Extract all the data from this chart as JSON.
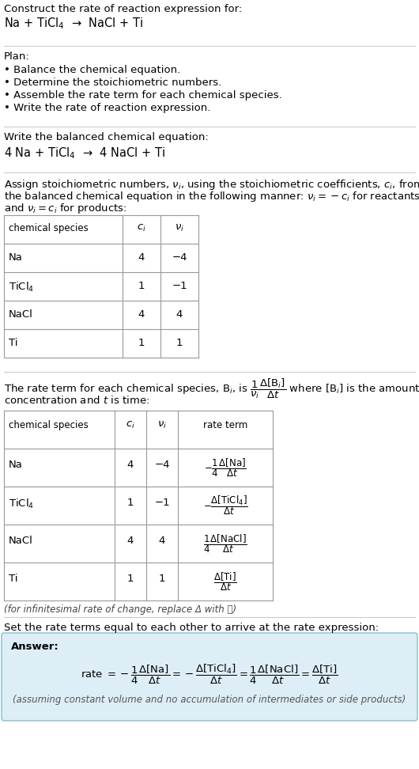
{
  "bg_color": "#ffffff",
  "text_color": "#000000",
  "answer_box_color": "#ddeef6",
  "answer_box_edge": "#8bbdd4",
  "section_line_color": "#cccccc",
  "fs": 9.5,
  "fs_small": 8.5,
  "fs_eq": 9.0,
  "title_text": "Construct the rate of reaction expression for:",
  "reaction_unbalanced": "Na + TiCl$_4$  →  NaCl + Ti",
  "plan_header": "Plan:",
  "plan_items": [
    "• Balance the chemical equation.",
    "• Determine the stoichiometric numbers.",
    "• Assemble the rate term for each chemical species.",
    "• Write the rate of reaction expression."
  ],
  "balanced_header": "Write the balanced chemical equation:",
  "reaction_balanced": "4 Na + TiCl$_4$  →  4 NaCl + Ti",
  "table1_headers": [
    "chemical species",
    "$c_i$",
    "$\\nu_i$"
  ],
  "table1_rows": [
    [
      "Na",
      "4",
      "−4"
    ],
    [
      "TiCl$_4$",
      "1",
      "−1"
    ],
    [
      "NaCl",
      "4",
      "4"
    ],
    [
      "Ti",
      "1",
      "1"
    ]
  ],
  "table2_headers": [
    "chemical species",
    "$c_i$",
    "$\\nu_i$",
    "rate term"
  ],
  "table2_species": [
    "Na",
    "TiCl$_4$",
    "NaCl",
    "Ti"
  ],
  "table2_ci": [
    "4",
    "1",
    "4",
    "1"
  ],
  "table2_vi": [
    "−4",
    "−1",
    "4",
    "1"
  ],
  "infinitesimal_note": "(for infinitesimal rate of change, replace Δ with 𝑑)",
  "set_equal_header": "Set the rate terms equal to each other to arrive at the rate expression:",
  "answer_label": "Answer:",
  "answer_note": "(assuming constant volume and no accumulation of intermediates or side products)"
}
